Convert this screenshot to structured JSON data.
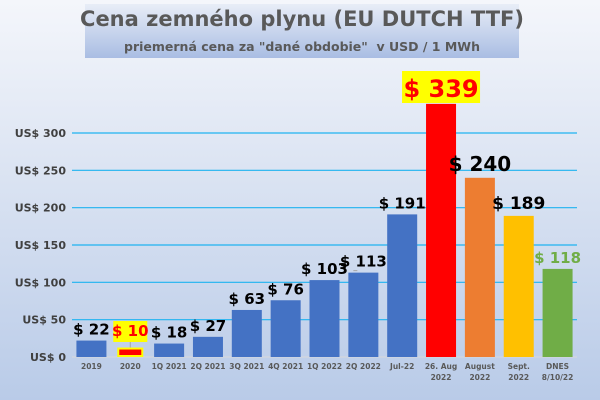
{
  "chart_data": {
    "type": "bar",
    "title": "Cena zemného plynu (EU DUTCH TTF)",
    "subtitle": "priemerná cena za \"dané obdobie\"  v USD / 1 MWh",
    "categories": [
      "2019",
      "2020",
      "1Q 2021",
      "2Q 2021",
      "3Q 2021",
      "4Q 2021",
      "1Q 2022",
      "2Q 2022",
      "Jul-22",
      "26. Aug\n2022",
      "August\n2022",
      "Sept.\n2022",
      "DNES\n8/10/22"
    ],
    "values": [
      22,
      10,
      18,
      27,
      63,
      76,
      103,
      113,
      191,
      339,
      240,
      189,
      118
    ],
    "data_labels": [
      "$ 22",
      "$ 10",
      "$ 18",
      "$ 27",
      "$ 63",
      "$ 76",
      "$ 103",
      "$ 113",
      "$ 191",
      "$ 339",
      "$ 240",
      "$ 189",
      "$ 118"
    ],
    "bar_colors": [
      "#4472c4",
      "#ff0000",
      "#4472c4",
      "#4472c4",
      "#4472c4",
      "#4472c4",
      "#4472c4",
      "#4472c4",
      "#4472c4",
      "#ff0000",
      "#ed7d31",
      "#ffc000",
      "#70ad47"
    ],
    "label_colors": [
      "#000000",
      "#ff0000",
      "#000000",
      "#000000",
      "#000000",
      "#000000",
      "#000000",
      "#000000",
      "#000000",
      "#ff0000",
      "#000000",
      "#000000",
      "#70ad47"
    ],
    "highlight_color": "#ffff00",
    "yticks": [
      "US$ 0",
      "US$ 50",
      "US$ 100",
      "US$ 150",
      "US$ 200",
      "US$ 250",
      "US$ 300"
    ],
    "ylim": [
      0,
      339
    ],
    "grid": true,
    "legend": "none"
  }
}
